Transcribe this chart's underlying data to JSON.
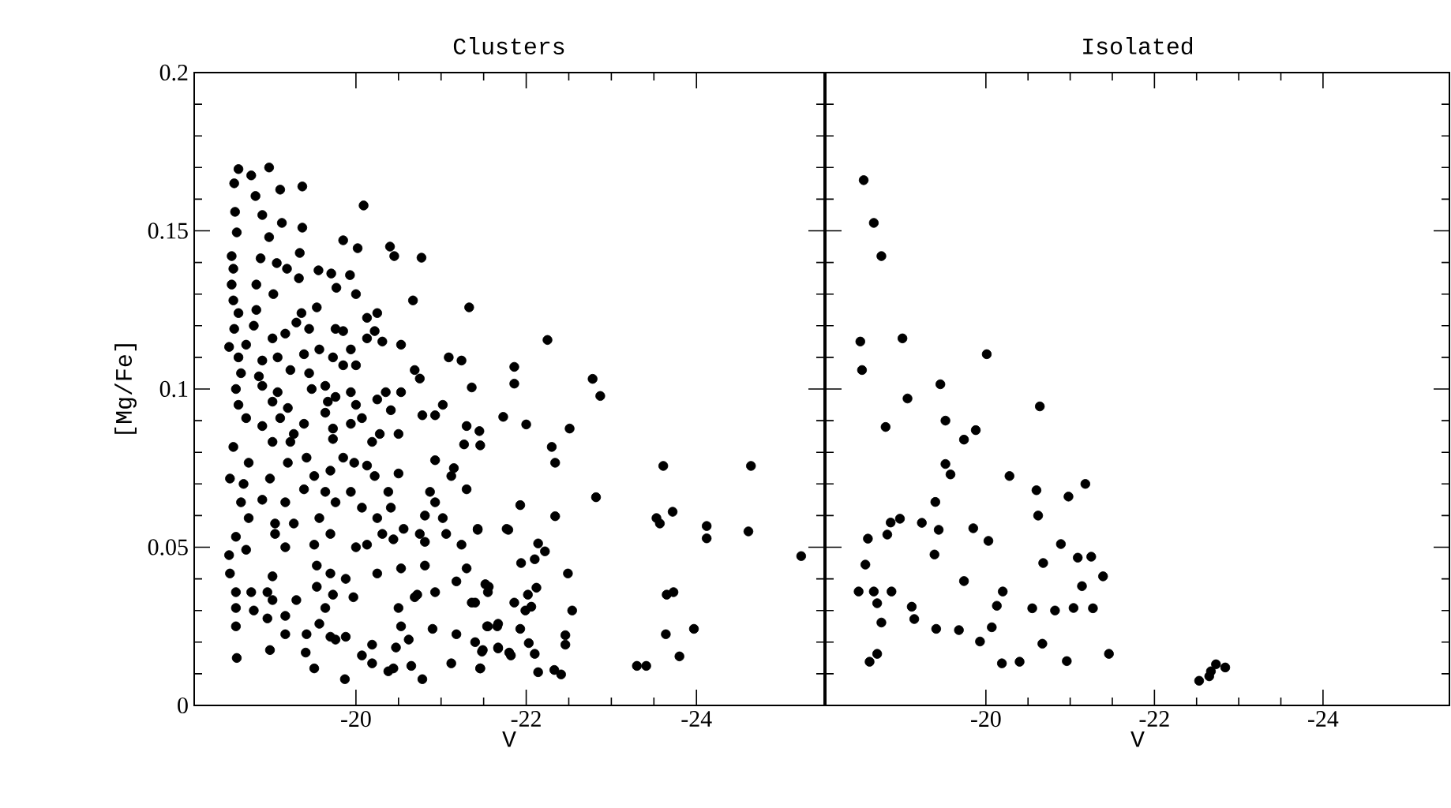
{
  "chart_data": [
    {
      "type": "scatter",
      "title": "Clusters",
      "xlabel": "V",
      "ylabel": "[Mg/Fe]",
      "marker": "circle",
      "color": "#000000",
      "xlim": [
        -18.1,
        -25.5
      ],
      "ylim": [
        0,
        0.2
      ],
      "xticks": [
        -20,
        -22,
        -24
      ],
      "yticks": [
        0,
        0.05,
        0.1,
        0.15,
        0.2
      ],
      "x": [
        -18.62,
        -18.77,
        -18.98,
        -18.57,
        -19.11,
        -19.37,
        -18.82,
        -20.09,
        -18.58,
        -18.9,
        -19.13,
        -19.37,
        -18.6,
        -18.98,
        -19.85,
        -20.02,
        -20.4,
        -20.45,
        -20.77,
        -18.54,
        -18.88,
        -19.34,
        -18.56,
        -19.07,
        -19.19,
        -19.56,
        -19.71,
        -19.93,
        -18.54,
        -18.83,
        -19.33,
        -19.77,
        -20.0,
        -18.56,
        -19.03,
        -20.67,
        -21.33,
        -18.62,
        -18.83,
        -19.54,
        -19.36,
        -20.13,
        -20.25,
        -18.57,
        -18.8,
        -19.3,
        -19.45,
        -19.76,
        -19.85,
        -20.22,
        -20.53,
        -18.51,
        -18.71,
        -19.02,
        -19.17,
        -19.57,
        -19.94,
        -20.13,
        -20.31,
        -18.62,
        -18.9,
        -19.08,
        -19.39,
        -19.73,
        -21.09,
        -21.24,
        -18.65,
        -18.86,
        -19.23,
        -19.45,
        -19.85,
        -20.0,
        -20.69,
        -20.75,
        -18.59,
        -18.9,
        -19.08,
        -19.64,
        -19.76,
        -19.94,
        -19.48,
        -20.35,
        -20.53,
        -21.36,
        -18.62,
        -19.02,
        -19.2,
        -19.67,
        -20.0,
        -20.25,
        -18.71,
        -19.11,
        -19.39,
        -19.64,
        -20.07,
        -20.41,
        -20.78,
        -21.02,
        -21.73,
        -18.9,
        -19.27,
        -19.73,
        -19.94,
        -20.28,
        -20.93,
        -21.3,
        -18.56,
        -19.02,
        -19.23,
        -19.73,
        -20.19,
        -20.5,
        -21.27,
        -21.46,
        -18.74,
        -19.2,
        -19.42,
        -19.85,
        -19.98,
        -20.13,
        -20.93,
        -21.15,
        -18.52,
        -18.99,
        -19.51,
        -19.7,
        -20.22,
        -20.5,
        -21.12,
        -21.3,
        -18.68,
        -19.39,
        -19.64,
        -19.94,
        -20.38,
        -20.87,
        -18.65,
        -18.9,
        -19.17,
        -19.76,
        -20.07,
        -20.41,
        -20.93,
        -18.74,
        -19.05,
        -19.57,
        -20.25,
        -20.81,
        -21.02,
        -18.59,
        -19.05,
        -19.27,
        -19.7,
        -20.0,
        -20.31,
        -20.56,
        -20.75,
        -21.06,
        -21.43,
        -21.77,
        -18.51,
        -18.71,
        -19.17,
        -19.51,
        -20.13,
        -20.44,
        -20.81,
        -21.24,
        -18.52,
        -19.02,
        -19.54,
        -19.7,
        -20.25,
        -20.53,
        -20.81,
        -21.3,
        -18.59,
        -18.77,
        -18.96,
        -19.54,
        -19.88,
        -21.18,
        -21.52,
        -18.59,
        -18.8,
        -19.02,
        -19.3,
        -19.73,
        -19.97,
        -20.72,
        -20.93,
        -21.36,
        -21.55,
        -18.59,
        -18.96,
        -19.17,
        -19.64,
        -20.5,
        -20.69,
        -19.17,
        -19.42,
        -19.57,
        -19.7,
        -19.88,
        -20.53,
        -20.9,
        -21.18,
        -21.55,
        -21.67,
        -18.6,
        -18.99,
        -19.41,
        -19.76,
        -20.07,
        -20.19,
        -20.47,
        -20.62,
        -21.12,
        -21.4,
        -21.49,
        -21.67,
        -21.8,
        -19.51,
        -19.87,
        -20.19,
        -20.38,
        -20.44,
        -20.65,
        -20.78,
        -21.46,
        -22.25,
        -21.86,
        -21.86,
        -22.78,
        -22.87,
        -22.0,
        -22.51,
        -21.45,
        -22.3,
        -22.34,
        -23.61,
        -24.64,
        -22.82,
        -21.93,
        -22.34,
        -23.72,
        -23.53,
        -23.57,
        -24.12,
        -24.12,
        -24.61,
        -25.23,
        -21.43,
        -21.79,
        -22.14,
        -22.22,
        -22.1,
        -21.94,
        -22.49,
        -21.56,
        -21.4,
        -21.86,
        -21.99,
        -22.06,
        -22.12,
        -22.02,
        -22.54,
        -23.65,
        -23.73,
        -21.54,
        -21.66,
        -21.93,
        -22.46,
        -22.46,
        -23.64,
        -23.97,
        -21.48,
        -21.67,
        -21.82,
        -22.03,
        -22.1,
        -23.8,
        -21.46,
        -22.14,
        -22.33,
        -22.41,
        -23.3,
        -23.41
      ],
      "values": [
        0.1695,
        0.1675,
        0.17,
        0.165,
        0.163,
        0.164,
        0.161,
        0.158,
        0.156,
        0.155,
        0.1525,
        0.151,
        0.1495,
        0.148,
        0.147,
        0.1445,
        0.145,
        0.142,
        0.1415,
        0.142,
        0.1413,
        0.143,
        0.138,
        0.1398,
        0.138,
        0.1375,
        0.1365,
        0.136,
        0.133,
        0.133,
        0.135,
        0.132,
        0.13,
        0.128,
        0.13,
        0.128,
        0.1258,
        0.124,
        0.125,
        0.1258,
        0.124,
        0.1225,
        0.124,
        0.119,
        0.12,
        0.121,
        0.119,
        0.119,
        0.1183,
        0.1183,
        0.114,
        0.1133,
        0.114,
        0.116,
        0.1175,
        0.1125,
        0.1125,
        0.116,
        0.115,
        0.11,
        0.109,
        0.11,
        0.111,
        0.11,
        0.11,
        0.109,
        0.105,
        0.104,
        0.106,
        0.105,
        0.1075,
        0.1075,
        0.106,
        0.1033,
        0.1,
        0.101,
        0.099,
        0.101,
        0.0975,
        0.099,
        0.1,
        0.099,
        0.099,
        0.1005,
        0.095,
        0.096,
        0.094,
        0.096,
        0.095,
        0.0967,
        0.0908,
        0.0908,
        0.089,
        0.0925,
        0.0908,
        0.0933,
        0.0917,
        0.095,
        0.0912,
        0.0883,
        0.0858,
        0.0875,
        0.089,
        0.0858,
        0.0917,
        0.0883,
        0.0817,
        0.0833,
        0.0833,
        0.0842,
        0.0833,
        0.0858,
        0.0825,
        0.0822,
        0.0767,
        0.0767,
        0.0783,
        0.0783,
        0.0767,
        0.0758,
        0.0775,
        0.075,
        0.0717,
        0.0717,
        0.0725,
        0.0742,
        0.0725,
        0.0733,
        0.0725,
        0.0683,
        0.07,
        0.0683,
        0.0675,
        0.0675,
        0.0675,
        0.0675,
        0.0642,
        0.065,
        0.0642,
        0.0642,
        0.0625,
        0.0625,
        0.0642,
        0.0592,
        0.0575,
        0.0592,
        0.0592,
        0.06,
        0.0592,
        0.0533,
        0.0542,
        0.0575,
        0.0542,
        0.05,
        0.0542,
        0.0558,
        0.0542,
        0.0542,
        0.0558,
        0.0558,
        0.0475,
        0.0492,
        0.05,
        0.0508,
        0.0508,
        0.0525,
        0.0517,
        0.0508,
        0.0417,
        0.0408,
        0.0442,
        0.0417,
        0.0417,
        0.0433,
        0.0442,
        0.0433,
        0.0358,
        0.0358,
        0.0358,
        0.0375,
        0.04,
        0.0392,
        0.0383,
        0.0308,
        0.03,
        0.0333,
        0.0333,
        0.035,
        0.0342,
        0.035,
        0.0358,
        0.0325,
        0.0358,
        0.025,
        0.0275,
        0.0283,
        0.0308,
        0.0308,
        0.0342,
        0.0225,
        0.0225,
        0.0258,
        0.0217,
        0.0217,
        0.025,
        0.0242,
        0.0225,
        0.025,
        0.0258,
        0.015,
        0.0175,
        0.0167,
        0.0208,
        0.0158,
        0.0192,
        0.0183,
        0.0208,
        0.0133,
        0.02,
        0.0175,
        0.0183,
        0.0167,
        0.0117,
        0.0083,
        0.0133,
        0.0108,
        0.0117,
        0.0125,
        0.0083,
        0.0117,
        0.1155,
        0.107,
        0.1017,
        0.1032,
        0.0978,
        0.0888,
        0.0875,
        0.0867,
        0.0817,
        0.0767,
        0.0757,
        0.0757,
        0.0658,
        0.0633,
        0.0598,
        0.0612,
        0.0592,
        0.0575,
        0.0567,
        0.0528,
        0.055,
        0.0472,
        0.0555,
        0.0555,
        0.0512,
        0.0487,
        0.0462,
        0.045,
        0.0417,
        0.0375,
        0.0325,
        0.0325,
        0.03,
        0.0312,
        0.0372,
        0.035,
        0.03,
        0.035,
        0.0358,
        0.025,
        0.025,
        0.0242,
        0.0222,
        0.0192,
        0.0225,
        0.0242,
        0.017,
        0.018,
        0.0158,
        0.0197,
        0.0163,
        0.0155,
        0.0117,
        0.0105,
        0.0112,
        0.0098,
        0.0125,
        0.0125
      ]
    },
    {
      "type": "scatter",
      "title": "Isolated",
      "xlabel": "V",
      "marker": "circle",
      "color": "#000000",
      "xlim": [
        -18.1,
        -25.5
      ],
      "ylim": [
        0,
        0.2
      ],
      "xticks": [
        -20,
        -22,
        -24
      ],
      "yticks": [
        0,
        0.05,
        0.1,
        0.15,
        0.2
      ],
      "tick_labels": "x",
      "x": [
        -18.55,
        -18.67,
        -18.76,
        -18.51,
        -19.01,
        -20.01,
        -18.53,
        -19.46,
        -19.07,
        -20.64,
        -19.52,
        -18.81,
        -19.88,
        -19.74,
        -19.52,
        -19.58,
        -20.28,
        -20.6,
        -21.18,
        -20.98,
        -19.4,
        -20.62,
        -18.98,
        -18.87,
        -19.24,
        -19.44,
        -19.85,
        -18.83,
        -18.6,
        -20.03,
        -20.89,
        -19.39,
        -21.09,
        -21.25,
        -20.68,
        -18.57,
        -21.39,
        -19.74,
        -21.14,
        -18.49,
        -18.67,
        -18.88,
        -20.2,
        -18.71,
        -19.12,
        -19.15,
        -20.13,
        -20.55,
        -20.82,
        -21.04,
        -21.27,
        -18.76,
        -19.41,
        -19.68,
        -20.07,
        -19.93,
        -20.67,
        -21.46,
        -18.62,
        -18.71,
        -20.19,
        -20.4,
        -20.96,
        -22.53,
        -22.65,
        -22.73,
        -22.84,
        -22.67
      ],
      "values": [
        0.166,
        0.1525,
        0.142,
        0.115,
        0.116,
        0.111,
        0.106,
        0.1015,
        0.097,
        0.0945,
        0.09,
        0.088,
        0.087,
        0.084,
        0.0763,
        0.073,
        0.0725,
        0.068,
        0.07,
        0.066,
        0.0643,
        0.06,
        0.059,
        0.0578,
        0.0577,
        0.0555,
        0.056,
        0.054,
        0.0527,
        0.052,
        0.051,
        0.0477,
        0.0467,
        0.047,
        0.045,
        0.0445,
        0.0408,
        0.0393,
        0.0377,
        0.036,
        0.036,
        0.036,
        0.036,
        0.0323,
        0.0312,
        0.0273,
        0.0315,
        0.0307,
        0.03,
        0.0308,
        0.0307,
        0.0262,
        0.0242,
        0.0238,
        0.0247,
        0.0202,
        0.0195,
        0.0163,
        0.0138,
        0.0163,
        0.0133,
        0.0138,
        0.014,
        0.0078,
        0.0092,
        0.013,
        0.012,
        0.0108
      ]
    }
  ]
}
